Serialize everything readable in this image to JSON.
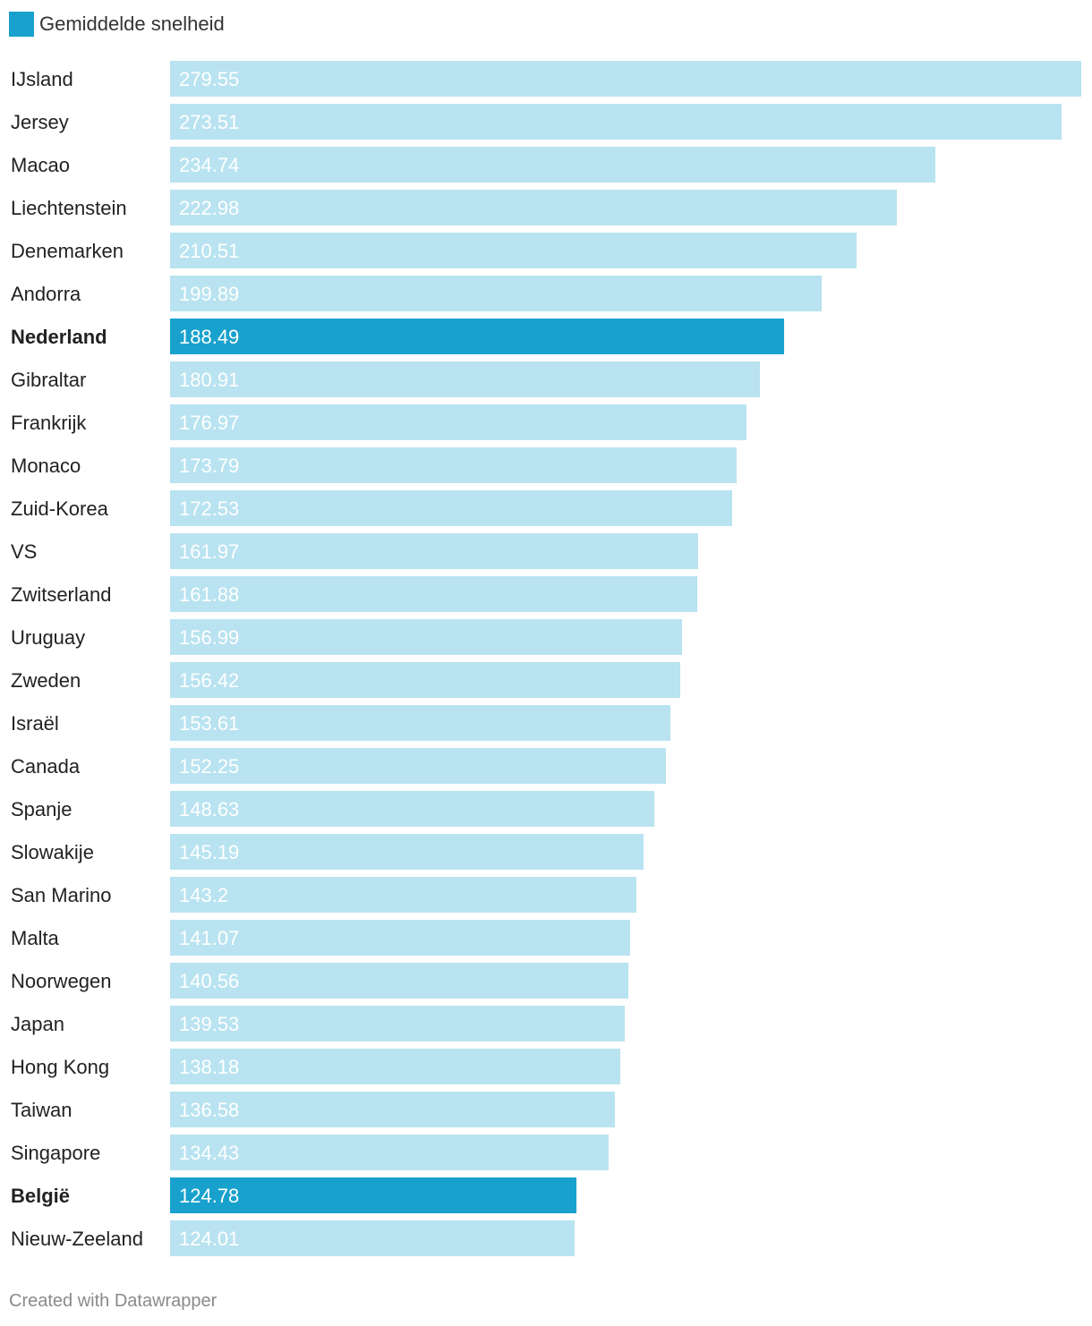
{
  "colors": {
    "default_bar": "#b9e3f0",
    "highlight_bar": "#18a1cd",
    "label_text": "#222222",
    "value_text": "#ffffff"
  },
  "legend": {
    "label": "Gemiddelde snelheid",
    "color": "#18a1cd"
  },
  "footer": {
    "credit": "Created with Datawrapper"
  },
  "chart_data": {
    "type": "bar",
    "orientation": "horizontal",
    "title": "",
    "xlabel": "",
    "ylabel": "",
    "xlim": [
      0,
      279.55
    ],
    "grid": false,
    "legend_position": "top-left",
    "series": [
      {
        "name": "Gemiddelde snelheid",
        "values": [
          279.55,
          273.51,
          234.74,
          222.98,
          210.51,
          199.89,
          188.49,
          180.91,
          176.97,
          173.79,
          172.53,
          161.97,
          161.88,
          156.99,
          156.42,
          153.61,
          152.25,
          148.63,
          145.19,
          143.2,
          141.07,
          140.56,
          139.53,
          138.18,
          136.58,
          134.43,
          124.78,
          124.01
        ]
      }
    ],
    "categories": [
      "IJsland",
      "Jersey",
      "Macao",
      "Liechtenstein",
      "Denemarken",
      "Andorra",
      "Nederland",
      "Gibraltar",
      "Frankrijk",
      "Monaco",
      "Zuid-Korea",
      "VS",
      "Zwitserland",
      "Uruguay",
      "Zweden",
      "Israël",
      "Canada",
      "Spanje",
      "Slowakije",
      "San Marino",
      "Malta",
      "Noorwegen",
      "Japan",
      "Hong Kong",
      "Taiwan",
      "Singapore",
      "België",
      "Nieuw-Zeeland"
    ],
    "value_labels": [
      "279.55",
      "273.51",
      "234.74",
      "222.98",
      "210.51",
      "199.89",
      "188.49",
      "180.91",
      "176.97",
      "173.79",
      "172.53",
      "161.97",
      "161.88",
      "156.99",
      "156.42",
      "153.61",
      "152.25",
      "148.63",
      "145.19",
      "143.2",
      "141.07",
      "140.56",
      "139.53",
      "138.18",
      "136.58",
      "134.43",
      "124.78",
      "124.01"
    ],
    "highlighted": [
      "Nederland",
      "België"
    ]
  }
}
